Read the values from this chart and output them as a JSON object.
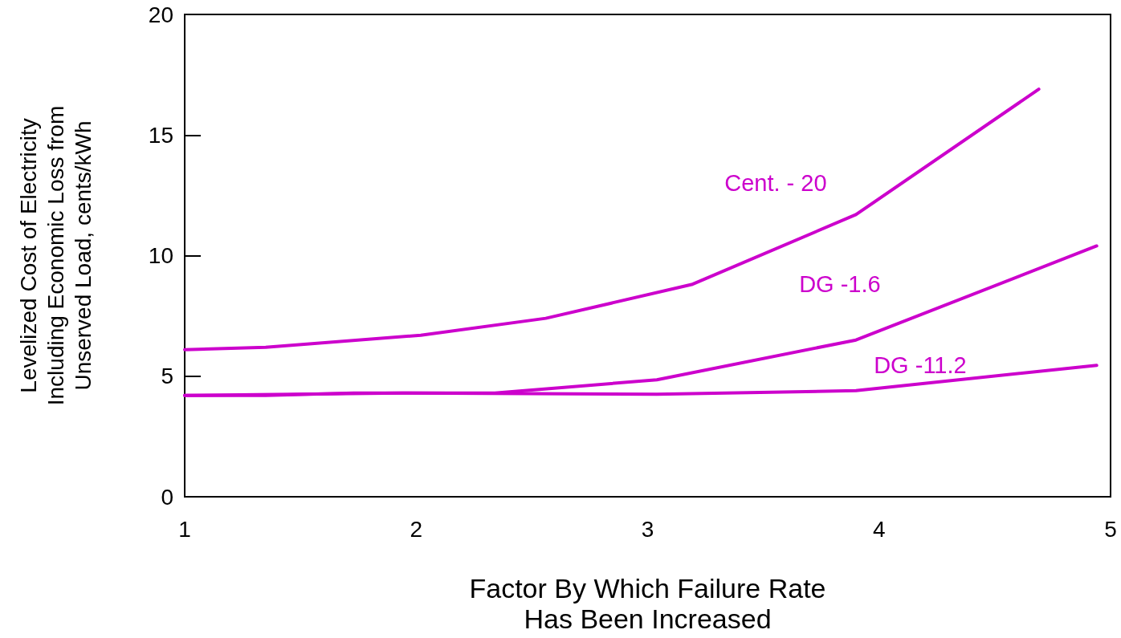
{
  "chart_data": {
    "type": "line",
    "xlabel": "Factor By Which Failure Rate\nHas Been Increased",
    "ylabel": "Levelized Cost of Electricity\nIncluding Economic Loss from\nUnserved Load, cents/kWh",
    "xlim": [
      1,
      5
    ],
    "xticks": [
      1,
      2,
      3,
      4,
      5
    ],
    "ylim": [
      0,
      20
    ],
    "yticks": [
      0,
      5,
      10,
      15,
      20
    ],
    "grid": false,
    "marker": "none",
    "line_style": "solid",
    "series": [
      {
        "name": "Cent. - 20",
        "color": "#cc00cc",
        "x": [
          1,
          1.35,
          2.02,
          2.56,
          3.19,
          3.9,
          4.69
        ],
        "values": [
          6.1,
          6.2,
          6.7,
          7.4,
          8.8,
          11.7,
          16.9
        ]
      },
      {
        "name": "DG -1.6",
        "color": "#cc00cc",
        "x": [
          1,
          1.35,
          1.73,
          2.34,
          3.04,
          3.9,
          4.94
        ],
        "values": [
          4.2,
          4.2,
          4.3,
          4.3,
          4.85,
          6.5,
          10.4
        ]
      },
      {
        "name": "DG -11.2",
        "color": "#cc00cc",
        "x": [
          1,
          1.94,
          3.04,
          3.9,
          4.94
        ],
        "values": [
          4.2,
          4.3,
          4.25,
          4.4,
          5.45
        ]
      }
    ]
  }
}
